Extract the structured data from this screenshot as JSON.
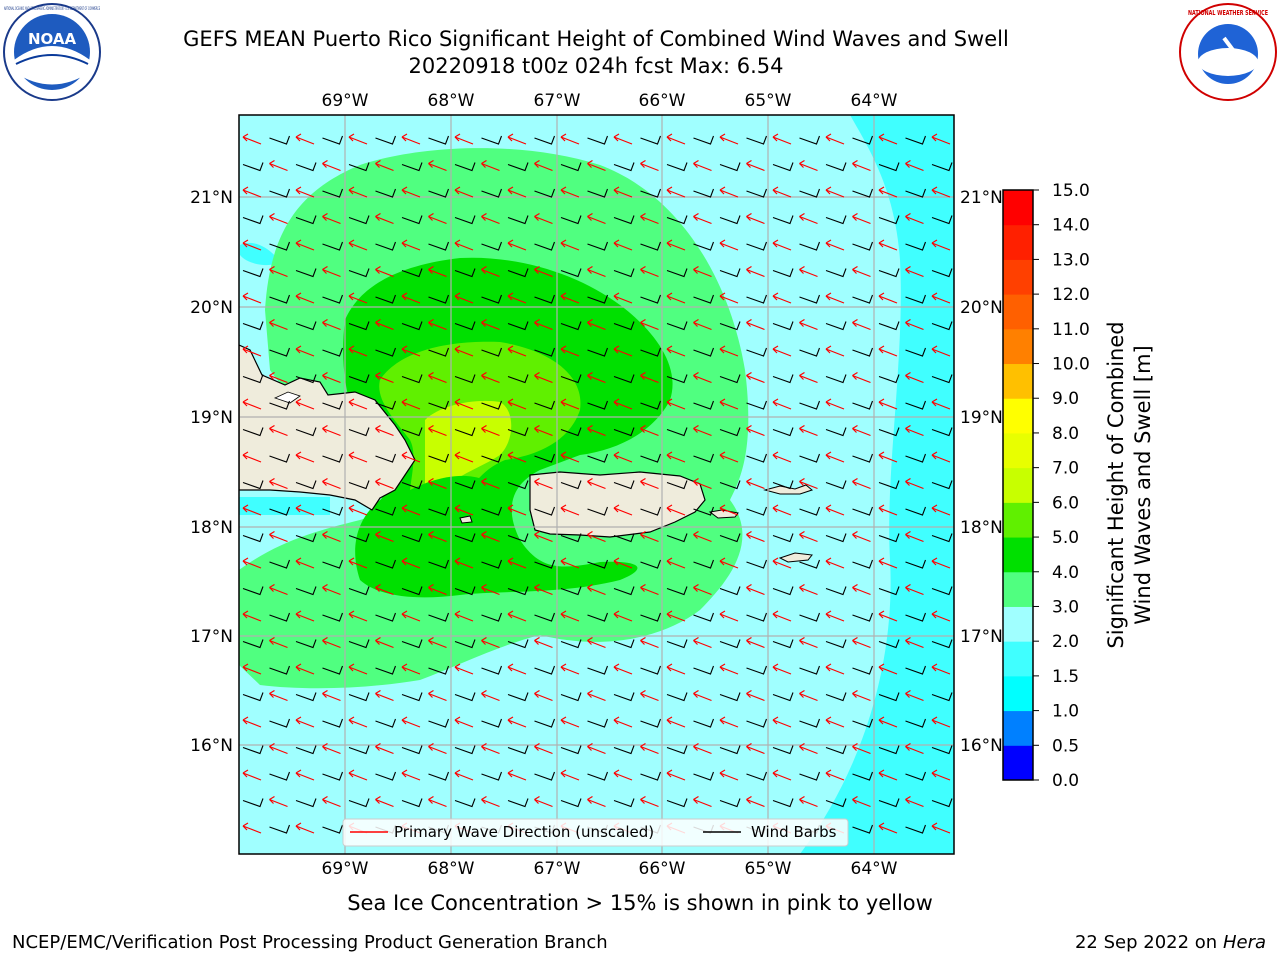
{
  "header": {
    "title_line1": "GEFS MEAN Puerto Rico Significant Height of Combined Wind Waves and Swell",
    "title_line2": "20220918 t00z 024h fcst   Max: 6.54"
  },
  "logos": {
    "noaa_text": "NOAA",
    "noaa_ring_text": "NATIONAL OCEANIC AND ATMOSPHERIC ADMINISTRATION · U.S. DEPARTMENT OF COMMERCE",
    "nws_ring_text": "NATIONAL WEATHER SERVICE"
  },
  "map": {
    "lon_labels": [
      "69°W",
      "68°W",
      "67°W",
      "66°W",
      "65°W",
      "64°W"
    ],
    "lat_labels": [
      "21°N",
      "20°N",
      "19°N",
      "18°N",
      "17°N",
      "16°N"
    ],
    "legend": {
      "wave_direction_label": "Primary Wave Direction (unscaled)",
      "wind_barbs_label": "Wind Barbs"
    },
    "colors": {
      "land": "#efecdc",
      "wave_arrow": "#ff0000",
      "barb": "#000000",
      "grid": "#b0b0b0"
    }
  },
  "colorbar": {
    "label_line1": "Significant Height of Combined",
    "label_line2": "Wind Waves and Swell [m]",
    "ticks": [
      "0.0",
      "0.5",
      "1.0",
      "1.5",
      "2.0",
      "3.0",
      "4.0",
      "5.0",
      "6.0",
      "7.0",
      "8.0",
      "9.0",
      "10.0",
      "11.0",
      "12.0",
      "13.0",
      "14.0",
      "15.0"
    ],
    "colors": [
      "#0000ff",
      "#0080ff",
      "#00ffff",
      "#40ffff",
      "#a0ffff",
      "#50ff80",
      "#00e000",
      "#60f000",
      "#c8ff00",
      "#e8ff00",
      "#ffff00",
      "#ffc000",
      "#ff8000",
      "#ff6000",
      "#ff4000",
      "#ff2000",
      "#ff0000"
    ]
  },
  "footer": {
    "sea_ice_note": "Sea Ice Concentration > 15% is shown in pink to yellow",
    "left": "NCEP/EMC/Verification Post Processing Product Generation Branch",
    "right_date": "22 Sep 2022 on",
    "right_host": "Hera"
  }
}
